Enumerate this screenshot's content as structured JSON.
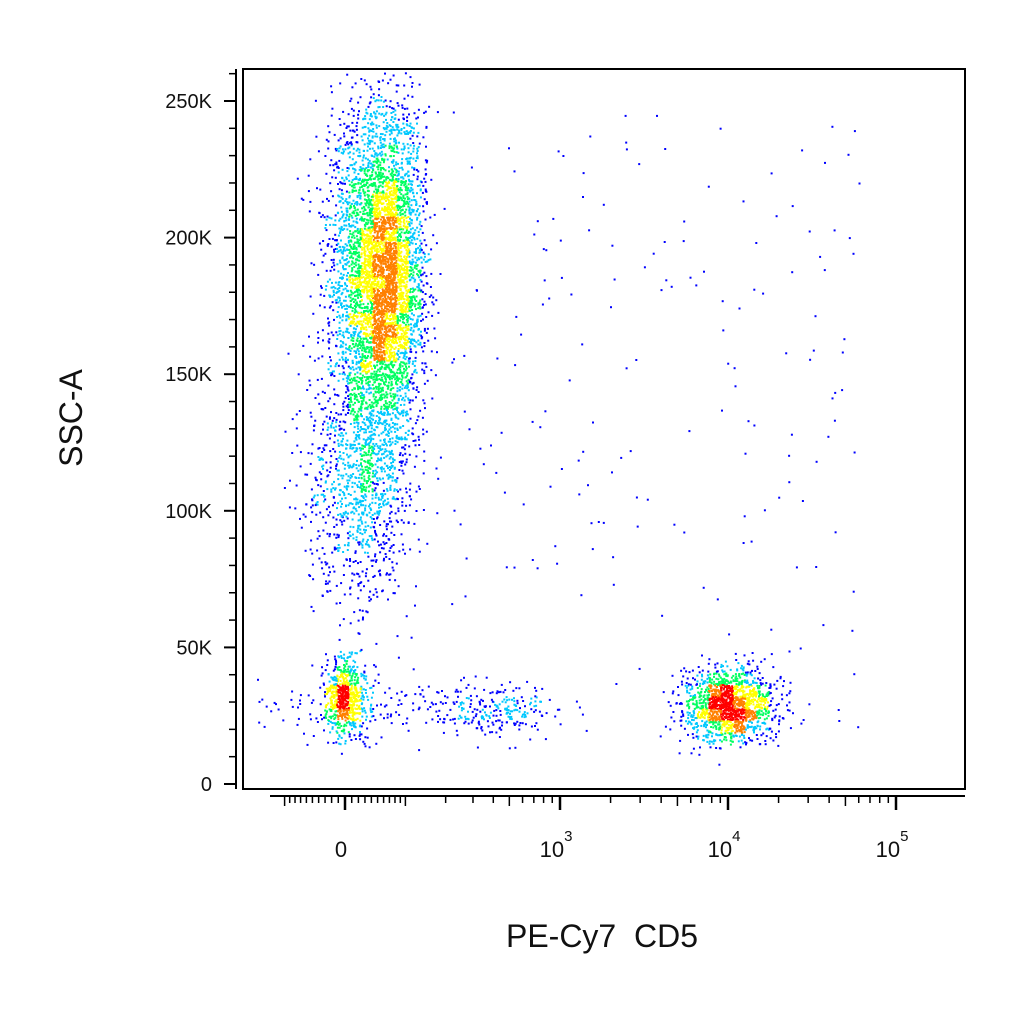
{
  "chart_data": {
    "type": "scatter",
    "title": "",
    "xlabel": "PE-Cy7  CD5",
    "ylabel": "SSC-A",
    "x_scale": "biexponential",
    "ylim": [
      0,
      262144
    ],
    "grid": false,
    "legend": "none",
    "x_ticks": [
      {
        "value": 0,
        "label": "0"
      },
      {
        "value": 1000,
        "base": "10",
        "exp": "3"
      },
      {
        "value": 10000,
        "base": "10",
        "exp": "4"
      },
      {
        "value": 100000,
        "base": "10",
        "exp": "5"
      }
    ],
    "y_ticks": [
      {
        "value": 0,
        "label": "0"
      },
      {
        "value": 50000,
        "label": "50K"
      },
      {
        "value": 100000,
        "label": "100K"
      },
      {
        "value": 150000,
        "label": "150K"
      },
      {
        "value": 200000,
        "label": "200K"
      },
      {
        "value": 250000,
        "label": "250K"
      }
    ],
    "density_colors": [
      "#0000ff",
      "#00c8ff",
      "#00ff60",
      "#ffff00",
      "#ff8000",
      "#ff0000"
    ],
    "populations": [
      {
        "x_center": 55,
        "y_center": 185000,
        "x_spread": 38,
        "y_spread": 32000,
        "count": 5200
      },
      {
        "x_center": 20,
        "y_center": 110000,
        "x_spread": 40,
        "y_spread": 22000,
        "count": 900
      },
      {
        "x_center": 0,
        "y_center": 32000,
        "x_spread": 15,
        "y_spread": 7000,
        "count": 700
      },
      {
        "x_center": 10000,
        "y_center": 29000,
        "x_spread": 3500,
        "y_spread": 6500,
        "count": 1500
      },
      {
        "x_center": 300,
        "y_center": 28000,
        "x_spread": 250,
        "y_spread": 5000,
        "count": 350
      }
    ]
  }
}
